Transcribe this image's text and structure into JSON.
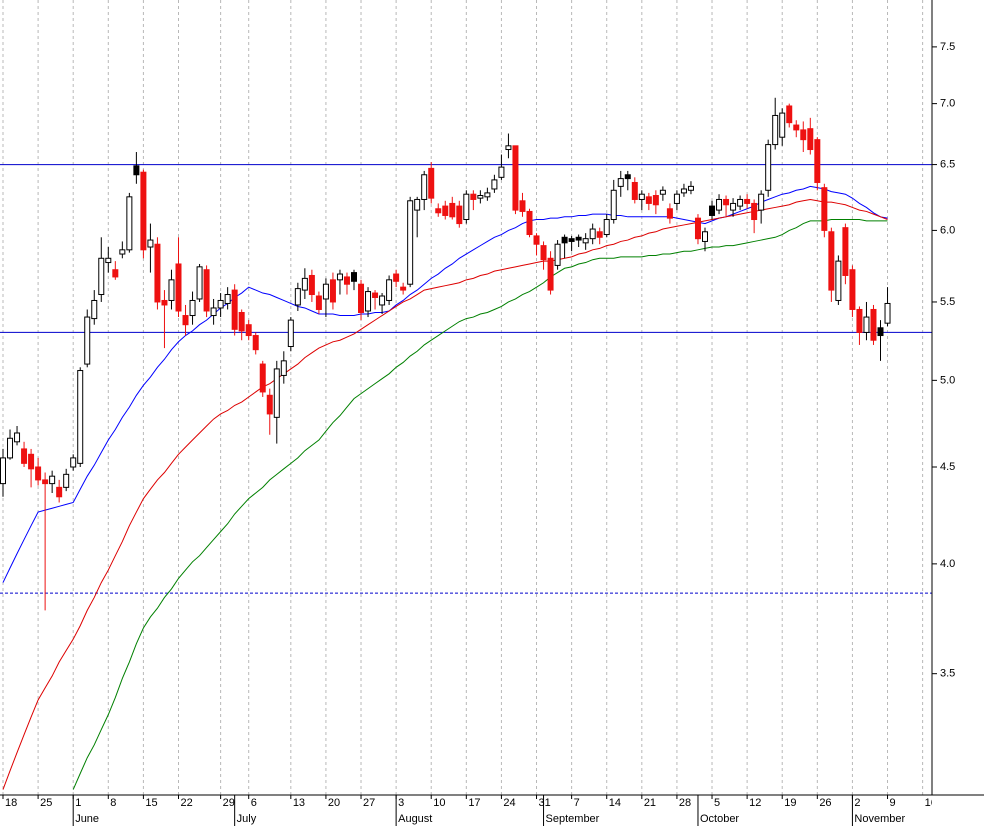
{
  "chart_data": {
    "type": "candlestick",
    "log_scale": true,
    "grid": true,
    "up_color": "#000000",
    "down_color": "#ee1111",
    "ylim": [
      3.02,
      7.94
    ],
    "yticks": [
      3.5,
      {
        "value": 4,
        "label": "4.0"
      },
      4.5,
      {
        "value": 5,
        "label": "5.0"
      },
      5.5,
      {
        "value": 6,
        "label": "6.0"
      },
      6.5,
      {
        "value": 7,
        "label": "7.0"
      },
      7.5
    ],
    "categories": [
      "18",
      null,
      null,
      null,
      null,
      "25",
      null,
      null,
      null,
      null,
      "1",
      null,
      null,
      null,
      null,
      "8",
      null,
      null,
      null,
      null,
      "15",
      null,
      null,
      null,
      null,
      "22",
      null,
      null,
      null,
      null,
      null,
      "29",
      null,
      null,
      null,
      "6",
      null,
      null,
      null,
      null,
      null,
      "13",
      null,
      null,
      null,
      null,
      "20",
      null,
      null,
      null,
      null,
      "27",
      null,
      null,
      null,
      null,
      "3",
      null,
      null,
      null,
      null,
      "10",
      null,
      null,
      null,
      null,
      "17",
      null,
      null,
      null,
      null,
      "24",
      null,
      null,
      null,
      null,
      "31",
      null,
      null,
      null,
      null,
      "7",
      null,
      null,
      null,
      null,
      "14",
      null,
      null,
      null,
      null,
      "21",
      null,
      null,
      null,
      null,
      "28",
      null,
      null,
      null,
      null,
      "5",
      null,
      null,
      null,
      null,
      "12",
      null,
      null,
      null,
      null,
      "19",
      null,
      null,
      null,
      null,
      "26",
      null,
      null,
      null,
      null,
      "2",
      null,
      null,
      null,
      null,
      "9"
    ],
    "next_week_label": "16",
    "months": [
      {
        "name": "June",
        "at": 10
      },
      {
        "name": "July",
        "at": 33
      },
      {
        "name": "August",
        "at": 56
      },
      {
        "name": "September",
        "at": 77
      },
      {
        "name": "October",
        "at": 99
      },
      {
        "name": "November",
        "at": 121
      }
    ],
    "open": [
      4.41,
      4.55,
      4.64,
      4.6,
      4.57,
      4.5,
      4.43,
      4.41,
      4.39,
      4.39,
      4.5,
      4.52,
      5.1,
      5.39,
      5.55,
      5.77,
      5.72,
      5.83,
      5.86,
      6.49,
      6.44,
      5.88,
      5.9,
      5.51,
      5.51,
      5.76,
      5.41,
      5.41,
      5.52,
      5.72,
      5.41,
      5.46,
      5.49,
      5.58,
      5.43,
      5.35,
      5.28,
      5.1,
      4.91,
      4.78,
      5.03,
      5.21,
      5.48,
      5.58,
      5.68,
      5.54,
      5.52,
      5.65,
      5.65,
      5.67,
      5.7,
      5.62,
      5.44,
      5.56,
      5.48,
      5.51,
      5.69,
      5.6,
      5.62,
      6.15,
      6.23,
      6.47,
      6.16,
      6.18,
      6.2,
      6.18,
      6.08,
      6.27,
      6.24,
      6.25,
      6.31,
      6.4,
      6.62,
      6.65,
      6.22,
      6.14,
      5.96,
      5.89,
      5.8,
      5.75,
      5.95,
      5.94,
      5.95,
      5.91,
      5.94,
      5.99,
      5.97,
      6.08,
      6.33,
      6.42,
      6.36,
      6.23,
      6.25,
      6.26,
      6.27,
      6.16,
      6.2,
      6.28,
      6.3,
      6.09,
      5.92,
      6.18,
      6.15,
      6.23,
      6.15,
      6.18,
      6.23,
      6.2,
      6.15,
      6.3,
      6.66,
      6.72,
      6.98,
      6.82,
      6.78,
      6.79,
      6.7,
      6.32,
      5.99,
      5.51,
      6.02,
      5.72,
      5.45,
      5.3,
      5.45,
      5.33,
      5.36
    ],
    "high": [
      4.6,
      4.71,
      4.73,
      4.64,
      4.6,
      4.55,
      4.47,
      4.48,
      4.43,
      4.49,
      4.57,
      5.08,
      5.45,
      5.58,
      5.95,
      5.88,
      5.78,
      5.92,
      6.28,
      6.6,
      6.46,
      6.05,
      5.95,
      5.58,
      5.72,
      5.95,
      5.48,
      5.57,
      5.76,
      5.75,
      5.52,
      5.56,
      5.6,
      5.62,
      5.45,
      5.38,
      5.3,
      5.12,
      4.95,
      5.12,
      5.18,
      5.4,
      5.63,
      5.73,
      5.72,
      5.57,
      5.66,
      5.7,
      5.72,
      5.7,
      5.72,
      5.65,
      5.6,
      5.58,
      5.56,
      5.68,
      5.72,
      5.63,
      6.25,
      6.25,
      6.45,
      6.52,
      6.2,
      6.22,
      6.25,
      6.22,
      6.3,
      6.3,
      6.3,
      6.32,
      6.42,
      6.58,
      6.75,
      6.65,
      6.28,
      6.16,
      5.98,
      5.92,
      5.85,
      5.93,
      5.97,
      5.96,
      5.97,
      5.98,
      6.05,
      6.02,
      6.12,
      6.38,
      6.45,
      6.45,
      6.4,
      6.3,
      6.28,
      6.3,
      6.33,
      6.2,
      6.3,
      6.35,
      6.37,
      6.12,
      6.02,
      6.22,
      6.27,
      6.26,
      6.24,
      6.26,
      6.27,
      6.23,
      6.3,
      6.7,
      7.05,
      6.96,
      7.0,
      6.86,
      6.85,
      6.88,
      6.72,
      6.35,
      6.02,
      5.82,
      6.05,
      5.75,
      5.47,
      5.5,
      5.48,
      5.38,
      5.6
    ],
    "low": [
      4.34,
      4.54,
      4.62,
      4.5,
      4.39,
      4.4,
      3.78,
      4.36,
      4.31,
      4.37,
      4.48,
      4.5,
      5.08,
      5.35,
      5.5,
      5.7,
      5.65,
      5.8,
      5.84,
      6.35,
      5.8,
      5.7,
      5.45,
      5.2,
      5.45,
      5.4,
      5.28,
      5.35,
      5.5,
      5.4,
      5.35,
      5.4,
      5.45,
      5.28,
      5.25,
      5.25,
      5.16,
      4.9,
      4.68,
      4.63,
      4.98,
      5.18,
      5.44,
      5.52,
      5.5,
      5.42,
      5.4,
      5.45,
      5.55,
      5.55,
      5.58,
      5.38,
      5.4,
      5.45,
      5.42,
      5.48,
      5.6,
      5.55,
      5.6,
      5.95,
      6.15,
      6.2,
      6.1,
      6.08,
      6.08,
      6.02,
      6.05,
      6.15,
      6.2,
      6.22,
      6.28,
      6.38,
      6.55,
      6.12,
      6.1,
      5.95,
      5.82,
      5.72,
      5.55,
      5.72,
      5.8,
      5.85,
      5.88,
      5.86,
      5.9,
      5.9,
      5.95,
      6.05,
      6.25,
      6.3,
      6.2,
      6.15,
      6.15,
      6.12,
      6.22,
      6.05,
      6.15,
      6.25,
      6.27,
      5.9,
      5.85,
      6.08,
      6.12,
      6.1,
      6.1,
      6.15,
      6.16,
      5.98,
      6.05,
      6.25,
      6.62,
      6.65,
      6.8,
      6.72,
      6.6,
      6.58,
      6.3,
      5.95,
      5.5,
      5.48,
      5.62,
      5.4,
      5.22,
      5.25,
      5.22,
      5.12,
      5.34
    ],
    "close": [
      4.55,
      4.66,
      4.69,
      4.52,
      4.49,
      4.43,
      4.41,
      4.45,
      4.34,
      4.46,
      4.55,
      5.06,
      5.4,
      5.51,
      5.8,
      5.8,
      5.67,
      5.86,
      6.25,
      6.42,
      5.86,
      5.93,
      5.5,
      5.48,
      5.65,
      5.44,
      5.35,
      5.51,
      5.74,
      5.44,
      5.46,
      5.51,
      5.55,
      5.32,
      5.31,
      5.28,
      5.19,
      4.93,
      4.8,
      5.07,
      5.12,
      5.38,
      5.59,
      5.66,
      5.55,
      5.45,
      5.62,
      5.5,
      5.69,
      5.62,
      5.64,
      5.43,
      5.57,
      5.53,
      5.54,
      5.65,
      5.64,
      5.58,
      6.22,
      6.23,
      6.42,
      6.24,
      6.13,
      6.11,
      6.1,
      6.05,
      6.27,
      6.23,
      6.26,
      6.28,
      6.38,
      6.48,
      6.65,
      6.15,
      6.14,
      5.97,
      5.9,
      5.79,
      5.58,
      5.9,
      5.91,
      5.92,
      5.93,
      5.94,
      6.01,
      5.95,
      6.08,
      6.3,
      6.39,
      6.39,
      6.23,
      6.27,
      6.2,
      6.19,
      6.3,
      6.09,
      6.27,
      6.31,
      6.33,
      5.94,
      5.99,
      6.11,
      6.23,
      6.19,
      6.2,
      6.23,
      6.2,
      6.08,
      6.27,
      6.66,
      6.9,
      6.92,
      6.84,
      6.78,
      6.7,
      6.62,
      6.36,
      6.0,
      5.58,
      5.78,
      5.68,
      5.45,
      5.3,
      5.4,
      5.25,
      5.28,
      5.49
    ],
    "series": [
      {
        "color": "#0000ff",
        "values": [
          3.91,
          3.98,
          4.05,
          4.12,
          4.19,
          4.26,
          4.27,
          4.28,
          4.29,
          4.3,
          4.31,
          4.38,
          4.45,
          4.51,
          4.58,
          4.65,
          4.71,
          4.78,
          4.84,
          4.91,
          4.97,
          5.02,
          5.08,
          5.13,
          5.19,
          5.24,
          5.28,
          5.31,
          5.35,
          5.38,
          5.42,
          5.46,
          5.49,
          5.53,
          5.56,
          5.6,
          5.58,
          5.56,
          5.55,
          5.53,
          5.51,
          5.49,
          5.47,
          5.46,
          5.44,
          5.42,
          5.42,
          5.42,
          5.41,
          5.41,
          5.41,
          5.42,
          5.42,
          5.43,
          5.43,
          5.44,
          5.48,
          5.51,
          5.55,
          5.58,
          5.62,
          5.66,
          5.69,
          5.73,
          5.76,
          5.8,
          5.83,
          5.86,
          5.89,
          5.92,
          5.95,
          5.97,
          6.0,
          6.02,
          6.05,
          6.07,
          6.08,
          6.08,
          6.09,
          6.09,
          6.1,
          6.1,
          6.11,
          6.11,
          6.12,
          6.12,
          6.12,
          6.11,
          6.11,
          6.1,
          6.1,
          6.1,
          6.1,
          6.1,
          6.1,
          6.1,
          6.09,
          6.08,
          6.07,
          6.06,
          6.05,
          6.07,
          6.09,
          6.1,
          6.12,
          6.14,
          6.16,
          6.18,
          6.21,
          6.23,
          6.25,
          6.27,
          6.28,
          6.3,
          6.31,
          6.33,
          6.32,
          6.31,
          6.29,
          6.28,
          6.27,
          6.24,
          6.2,
          6.17,
          6.13,
          6.1,
          6.09
        ]
      },
      {
        "color": "#dd0000",
        "values": [
          3.04,
          3.11,
          3.18,
          3.25,
          3.32,
          3.39,
          3.44,
          3.49,
          3.55,
          3.6,
          3.65,
          3.71,
          3.78,
          3.84,
          3.91,
          3.97,
          4.04,
          4.11,
          4.19,
          4.26,
          4.33,
          4.38,
          4.43,
          4.47,
          4.52,
          4.57,
          4.61,
          4.65,
          4.69,
          4.73,
          4.77,
          4.8,
          4.82,
          4.85,
          4.87,
          4.9,
          4.93,
          4.96,
          4.98,
          5.01,
          5.04,
          5.07,
          5.1,
          5.14,
          5.17,
          5.2,
          5.22,
          5.24,
          5.25,
          5.27,
          5.29,
          5.32,
          5.35,
          5.38,
          5.41,
          5.44,
          5.47,
          5.5,
          5.52,
          5.55,
          5.58,
          5.59,
          5.6,
          5.61,
          5.62,
          5.63,
          5.65,
          5.66,
          5.68,
          5.69,
          5.71,
          5.72,
          5.73,
          5.74,
          5.75,
          5.76,
          5.77,
          5.78,
          5.78,
          5.79,
          5.8,
          5.81,
          5.83,
          5.84,
          5.86,
          5.87,
          5.89,
          5.9,
          5.92,
          5.93,
          5.95,
          5.96,
          5.98,
          5.99,
          6.01,
          6.02,
          6.03,
          6.04,
          6.05,
          6.06,
          6.07,
          6.08,
          6.09,
          6.1,
          6.11,
          6.12,
          6.13,
          6.14,
          6.15,
          6.16,
          6.17,
          6.18,
          6.19,
          6.21,
          6.22,
          6.23,
          6.22,
          6.21,
          6.21,
          6.2,
          6.19,
          6.17,
          6.15,
          6.14,
          6.12,
          6.1,
          6.08
        ]
      },
      {
        "color": "#008000",
        "values": [
          null,
          null,
          null,
          null,
          null,
          null,
          null,
          null,
          null,
          null,
          3.04,
          3.1,
          3.16,
          3.21,
          3.27,
          3.33,
          3.4,
          3.48,
          3.55,
          3.63,
          3.7,
          3.75,
          3.79,
          3.84,
          3.88,
          3.93,
          3.97,
          4.01,
          4.04,
          4.08,
          4.12,
          4.16,
          4.2,
          4.25,
          4.29,
          4.33,
          4.36,
          4.39,
          4.43,
          4.46,
          4.49,
          4.52,
          4.55,
          4.59,
          4.62,
          4.65,
          4.7,
          4.75,
          4.79,
          4.84,
          4.89,
          4.92,
          4.95,
          4.98,
          5.01,
          5.04,
          5.08,
          5.11,
          5.15,
          5.18,
          5.22,
          5.25,
          5.28,
          5.31,
          5.34,
          5.37,
          5.39,
          5.4,
          5.42,
          5.43,
          5.45,
          5.47,
          5.5,
          5.52,
          5.55,
          5.57,
          5.6,
          5.63,
          5.67,
          5.7,
          5.73,
          5.74,
          5.76,
          5.77,
          5.79,
          5.8,
          5.8,
          5.8,
          5.81,
          5.81,
          5.81,
          5.81,
          5.82,
          5.82,
          5.83,
          5.83,
          5.84,
          5.85,
          5.85,
          5.86,
          5.87,
          5.88,
          5.88,
          5.89,
          5.89,
          5.9,
          5.91,
          5.92,
          5.93,
          5.94,
          5.95,
          5.97,
          6.0,
          6.02,
          6.05,
          6.07,
          6.07,
          6.07,
          6.08,
          6.08,
          6.08,
          6.08,
          6.08,
          6.07,
          6.07,
          6.07,
          6.07
        ]
      }
    ],
    "hlines": [
      {
        "value": 6.5,
        "color": "#0000cc",
        "style": "solid"
      },
      {
        "value": 5.3,
        "color": "#0000cc",
        "style": "solid"
      },
      {
        "value": 3.86,
        "color": "#0000cc",
        "style": "dashed"
      }
    ]
  }
}
